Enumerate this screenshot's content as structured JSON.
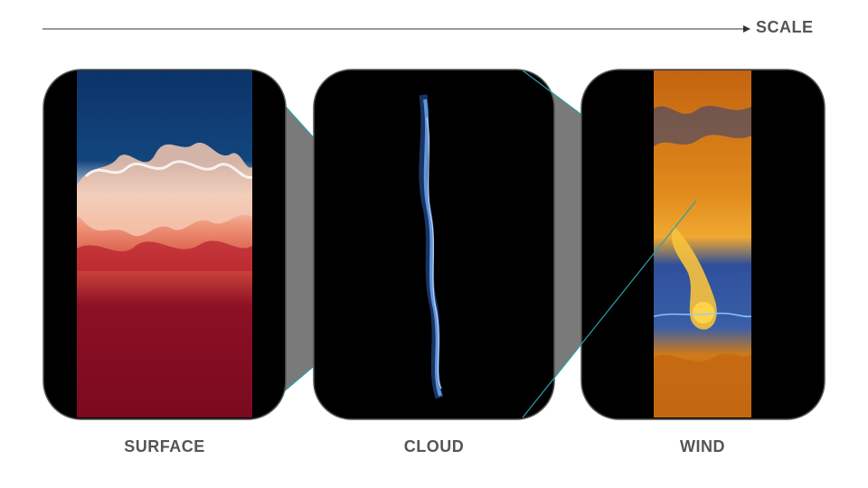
{
  "axis": {
    "label": "SCALE"
  },
  "panels": [
    {
      "id": "surface",
      "label": "SURFACE"
    },
    {
      "id": "cloud",
      "label": "CLOUD"
    },
    {
      "id": "wind",
      "label": "WIND"
    }
  ],
  "colors": {
    "frame": "#000000",
    "frame_border": "#555555",
    "connector_fill": "#7a7a7a",
    "connector_line": "#2aa0a8",
    "ocean_top": "#0d3a6e",
    "ocean_bottom": "#7d0a22",
    "cloud_blue": "#4f86d8",
    "wind_orange": "#e08a1c",
    "wind_blue": "#2f4f9a",
    "label_text": "#555555"
  }
}
